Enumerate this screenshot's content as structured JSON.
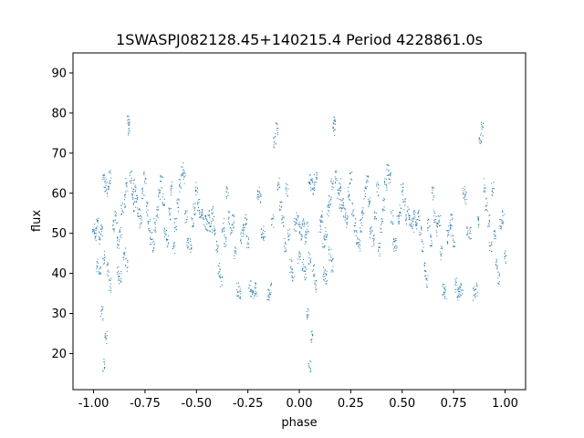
{
  "chart_data": {
    "type": "scatter",
    "title": "1SWASPJ082128.45+140215.4 Period 4228861.0s",
    "xlabel": "phase",
    "ylabel": "flux",
    "xlim": [
      -1.1,
      1.1
    ],
    "ylim": [
      11,
      95
    ],
    "xticks": [
      "-1.00",
      "-0.75",
      "-0.50",
      "-0.25",
      "0.00",
      "0.25",
      "0.50",
      "0.75",
      "1.00"
    ],
    "xtick_values": [
      -1.0,
      -0.75,
      -0.5,
      -0.25,
      0.0,
      0.25,
      0.5,
      0.75,
      1.0
    ],
    "yticks": [
      "20",
      "30",
      "40",
      "50",
      "60",
      "70",
      "80",
      "90"
    ],
    "ytick_values": [
      20,
      30,
      40,
      50,
      60,
      70,
      80,
      90
    ],
    "grid": false,
    "point_color": "#1f77b4",
    "description_of_data": "folded light curve; phase range [-1, 1] repeats the same cycle twice",
    "series": [
      {
        "values_phase_flux": [
          [
            0.0,
            51
          ],
          [
            0.01,
            50
          ],
          [
            0.02,
            52
          ],
          [
            0.03,
            49
          ],
          [
            0.04,
            51
          ],
          [
            0.05,
            63
          ],
          [
            0.06,
            62
          ],
          [
            0.07,
            61
          ],
          [
            0.08,
            64
          ],
          [
            0.02,
            42
          ],
          [
            0.03,
            40
          ],
          [
            0.05,
            44
          ],
          [
            0.07,
            41
          ],
          [
            0.08,
            37
          ],
          [
            0.04,
            30
          ],
          [
            0.06,
            24
          ],
          [
            0.05,
            17
          ],
          [
            0.1,
            52
          ],
          [
            0.11,
            54
          ],
          [
            0.12,
            48
          ],
          [
            0.13,
            50
          ],
          [
            0.14,
            56
          ],
          [
            0.15,
            58
          ],
          [
            0.16,
            62
          ],
          [
            0.17,
            76
          ],
          [
            0.17,
            78
          ],
          [
            0.18,
            64
          ],
          [
            0.19,
            60
          ],
          [
            0.2,
            57
          ],
          [
            0.12,
            40
          ],
          [
            0.13,
            39
          ],
          [
            0.15,
            45
          ],
          [
            0.16,
            42
          ],
          [
            0.2,
            62
          ],
          [
            0.21,
            58
          ],
          [
            0.22,
            55
          ],
          [
            0.23,
            53
          ],
          [
            0.24,
            60
          ],
          [
            0.25,
            64
          ],
          [
            0.26,
            56
          ],
          [
            0.27,
            52
          ],
          [
            0.28,
            49
          ],
          [
            0.29,
            47
          ],
          [
            0.3,
            52
          ],
          [
            0.31,
            55
          ],
          [
            0.32,
            60
          ],
          [
            0.33,
            63
          ],
          [
            0.34,
            58
          ],
          [
            0.35,
            50
          ],
          [
            0.36,
            48
          ],
          [
            0.37,
            55
          ],
          [
            0.38,
            61
          ],
          [
            0.39,
            46
          ],
          [
            0.4,
            52
          ],
          [
            0.41,
            57
          ],
          [
            0.42,
            62
          ],
          [
            0.43,
            66
          ],
          [
            0.44,
            64
          ],
          [
            0.45,
            54
          ],
          [
            0.46,
            47
          ],
          [
            0.47,
            47
          ],
          [
            0.48,
            53
          ],
          [
            0.49,
            56
          ],
          [
            0.5,
            61
          ],
          [
            0.51,
            57
          ],
          [
            0.52,
            54
          ],
          [
            0.53,
            55
          ],
          [
            0.54,
            53
          ],
          [
            0.55,
            52
          ],
          [
            0.56,
            54
          ],
          [
            0.57,
            52
          ],
          [
            0.58,
            55
          ],
          [
            0.59,
            50
          ],
          [
            0.6,
            47
          ],
          [
            0.61,
            41
          ],
          [
            0.62,
            38
          ],
          [
            0.63,
            52
          ],
          [
            0.64,
            48
          ],
          [
            0.65,
            60
          ],
          [
            0.66,
            54
          ],
          [
            0.67,
            51
          ],
          [
            0.68,
            53
          ],
          [
            0.69,
            45
          ],
          [
            0.7,
            36
          ],
          [
            0.71,
            35
          ],
          [
            0.72,
            49
          ],
          [
            0.73,
            51
          ],
          [
            0.74,
            53
          ],
          [
            0.75,
            48
          ],
          [
            0.76,
            37
          ],
          [
            0.77,
            35
          ],
          [
            0.78,
            35
          ],
          [
            0.79,
            36
          ],
          [
            0.8,
            60
          ],
          [
            0.81,
            59
          ],
          [
            0.82,
            50
          ],
          [
            0.83,
            50
          ],
          [
            0.85,
            35
          ],
          [
            0.86,
            36
          ],
          [
            0.87,
            53
          ],
          [
            0.88,
            73
          ],
          [
            0.89,
            76
          ],
          [
            0.9,
            62
          ],
          [
            0.91,
            57
          ],
          [
            0.92,
            53
          ],
          [
            0.93,
            47
          ],
          [
            0.94,
            61
          ],
          [
            0.95,
            50
          ],
          [
            0.96,
            42
          ],
          [
            0.97,
            39
          ],
          [
            0.98,
            52
          ],
          [
            0.99,
            54
          ],
          [
            1.0,
            44
          ]
        ]
      }
    ]
  }
}
